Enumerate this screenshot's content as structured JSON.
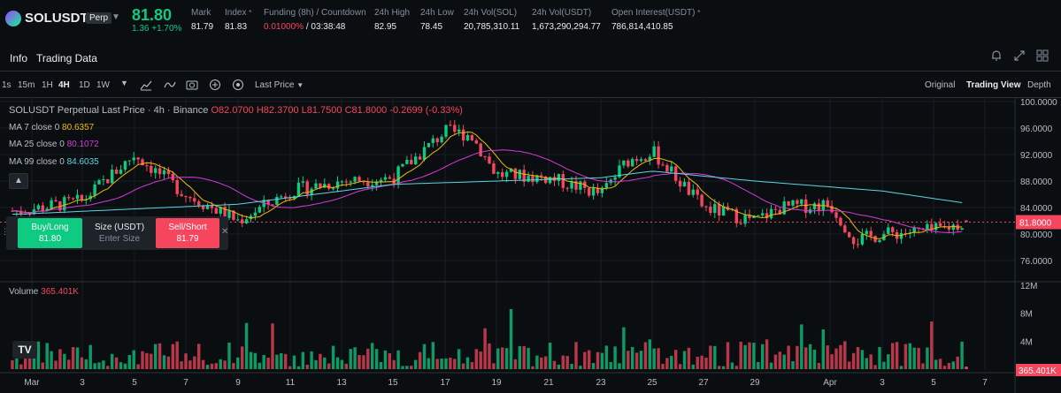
{
  "ticker": {
    "symbol": "SOLUSDT",
    "contract_badge": "Perp",
    "last_price": "81.80",
    "change_abs": "1.36",
    "change_pct": "+1.70%",
    "stats": [
      {
        "label": "Mark",
        "value": "81.79"
      },
      {
        "label": "Index",
        "value": "81.83"
      },
      {
        "label": "Funding (8h) / Countdown",
        "value": "0.01000%",
        "value2": "/ 03:38:48"
      },
      {
        "label": "24h High",
        "value": "82.95"
      },
      {
        "label": "24h Low",
        "value": "78.45"
      },
      {
        "label": "24h Vol(SOL)",
        "value": "20,785,310.11"
      },
      {
        "label": "24h Vol(USDT)",
        "value": "1,673,290,294.77"
      },
      {
        "label": "Open Interest(USDT)",
        "value": "786,814,410.85"
      }
    ]
  },
  "tabs": [
    "Info",
    "Trading Data"
  ],
  "toolbar": {
    "intervals": [
      "1s",
      "15m",
      "1H",
      "4H",
      "1D",
      "1W"
    ],
    "active_interval": "4H",
    "price_type": "Last Price",
    "views": [
      "Original",
      "Trading View",
      "Depth"
    ],
    "active_view": "Trading View"
  },
  "chart": {
    "title": "SOLUSDT Perpetual Last Price · 4h · Binance",
    "ohlc": {
      "o": "O82.0700",
      "h": "H82.3700",
      "l": "L81.7500",
      "c": "C81.8000",
      "chg": "-0.2699 (-0.33%)"
    },
    "ma": [
      {
        "label": "MA 7 close 0",
        "value": "80.6357",
        "color": "#f0b90b"
      },
      {
        "label": "MA 25 close 0",
        "value": "80.1072",
        "color": "#d63ad6"
      },
      {
        "label": "MA 99 close 0",
        "value": "84.6035",
        "color": "#5fd3e3"
      }
    ],
    "price_ticks": [
      "100.0000",
      "96.0000",
      "92.0000",
      "88.0000",
      "84.0000",
      "80.0000",
      "76.0000"
    ],
    "current_price_label": "81.8000",
    "volume_label": "Volume",
    "volume_value": "365.401K",
    "volume_ticks": [
      "12M",
      "8M",
      "4M"
    ],
    "current_volume_label": "365.401K",
    "date_ticks": [
      "Mar",
      "3",
      "5",
      "7",
      "9",
      "11",
      "13",
      "15",
      "17",
      "19",
      "21",
      "23",
      "25",
      "27",
      "29",
      "Apr",
      "3",
      "5",
      "7"
    ]
  },
  "chart_data": {
    "type": "candlestick",
    "title": "SOLUSDT Perpetual Last Price · 4h · Binance",
    "x": [
      "Mar",
      "3",
      "5",
      "7",
      "9",
      "11",
      "13",
      "15",
      "17",
      "19",
      "21",
      "23",
      "25",
      "27",
      "29",
      "Apr",
      "3",
      "5",
      "7"
    ],
    "ylim": [
      74,
      100
    ],
    "close_path_anchors": [
      {
        "x": "Mar",
        "close": 83.5
      },
      {
        "x": "3",
        "close": 85.0
      },
      {
        "x": "5",
        "close": 92.0
      },
      {
        "x": "7",
        "close": 86.0
      },
      {
        "x": "9",
        "close": 82.0
      },
      {
        "x": "11",
        "close": 86.5
      },
      {
        "x": "13",
        "close": 88.0
      },
      {
        "x": "15",
        "close": 88.5
      },
      {
        "x": "17",
        "close": 95.5
      },
      {
        "x": "18",
        "close": 95.0
      },
      {
        "x": "19",
        "close": 89.0
      },
      {
        "x": "21",
        "close": 88.5
      },
      {
        "x": "23",
        "close": 86.0
      },
      {
        "x": "24",
        "close": 91.0
      },
      {
        "x": "25",
        "close": 92.5
      },
      {
        "x": "27",
        "close": 84.0
      },
      {
        "x": "29",
        "close": 82.0
      },
      {
        "x": "30",
        "close": 84.0
      },
      {
        "x": "Apr",
        "close": 84.5
      },
      {
        "x": "2",
        "close": 79.0
      },
      {
        "x": "3",
        "close": 80.0
      },
      {
        "x": "5",
        "close": 80.5
      },
      {
        "x": "6",
        "close": 81.8
      }
    ],
    "ma99_anchors": [
      {
        "x": "Mar",
        "value": 83.0
      },
      {
        "x": "9",
        "value": 84.5
      },
      {
        "x": "15",
        "value": 87.5
      },
      {
        "x": "23",
        "value": 88.5
      },
      {
        "x": "25",
        "value": 89.5
      },
      {
        "x": "29",
        "value": 88.0
      },
      {
        "x": "3",
        "value": 86.5
      },
      {
        "x": "6",
        "value": 84.6
      }
    ],
    "last_close": 81.8,
    "last_volume": "365.401K",
    "volume_ylim": [
      0,
      12000000
    ]
  },
  "order": {
    "buy_label": "Buy/Long",
    "buy_price": "81.80",
    "size_label": "Size (USDT)",
    "size_placeholder": "Enter Size",
    "sell_label": "Sell/Short",
    "sell_price": "81.79"
  },
  "colors": {
    "up": "#0ecb81",
    "down": "#f6465d",
    "bg": "#0b0e11",
    "accent": "#f0b90b"
  },
  "icons": [
    "bell-icon",
    "expand-icon",
    "grid-icon",
    "candle-type-icon",
    "indicator-icon",
    "screenshot-icon",
    "add-icon",
    "settings-icon",
    "tradingview-logo-icon"
  ]
}
